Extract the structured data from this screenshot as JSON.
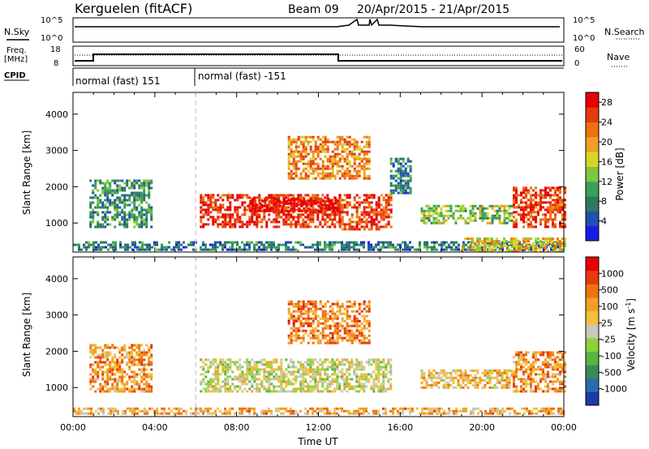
{
  "header": {
    "title": "Kerguelen (fitACF)",
    "beam": "Beam 09",
    "date_range": "20/Apr/2015 - 21/Apr/2015"
  },
  "strips": {
    "nsky_label": "N.Sky",
    "nsky_ticks": [
      "10^5",
      "10^0"
    ],
    "nsearch_label": "N.Search",
    "nsearch_ticks": [
      "10^5",
      "10^0"
    ],
    "freq_label": "Freq.",
    "freq_unit": "[MHz]",
    "freq_ticks": [
      "18",
      "8"
    ],
    "nave_label": "Nave",
    "nave_ticks": [
      "60",
      "0"
    ],
    "cpid_label": "CPID",
    "cpid_segments": [
      "normal (fast) 151",
      "normal (fast) -151"
    ]
  },
  "colors": {
    "power": [
      "#1a1ae6",
      "#2050b0",
      "#2f7a5a",
      "#3aa05a",
      "#7fc83c",
      "#d6d62a",
      "#f0a020",
      "#f07010",
      "#e63a0a",
      "#e60000"
    ],
    "velocity": [
      "#1a3caa",
      "#2a6ab0",
      "#3a8a5a",
      "#5ab440",
      "#8cd23c",
      "#c8c8c0",
      "#f0c040",
      "#f0a020",
      "#f07010",
      "#e63a0a",
      "#e60000"
    ]
  },
  "chart_data": [
    {
      "type": "heatmap",
      "panel": "power",
      "xlabel": "",
      "ylabel": "Slant Range [km]",
      "xlim": [
        0,
        24
      ],
      "ylim": [
        200,
        4600
      ],
      "yticks": [
        "1000",
        "2000",
        "3000",
        "4000"
      ],
      "colorbar": {
        "label": "Power [dB]",
        "ticks": [
          "4",
          "8",
          "12",
          "16",
          "20",
          "24",
          "28"
        ],
        "range": [
          0,
          30
        ]
      },
      "regions": [
        {
          "t0": 0.0,
          "t1": 24.0,
          "r0": 250,
          "r1": 500,
          "level": 0.25
        },
        {
          "t0": 0.8,
          "t1": 3.8,
          "r0": 900,
          "r1": 2200,
          "level": 0.3
        },
        {
          "t0": 6.2,
          "t1": 13.0,
          "r0": 900,
          "r1": 1800,
          "level": 0.88
        },
        {
          "t0": 8.5,
          "t1": 13.0,
          "r0": 1300,
          "r1": 1700,
          "level": 0.95
        },
        {
          "t0": 13.0,
          "t1": 15.5,
          "r0": 800,
          "r1": 1800,
          "level": 0.85
        },
        {
          "t0": 10.5,
          "t1": 14.5,
          "r0": 2200,
          "r1": 3400,
          "level": 0.72
        },
        {
          "t0": 15.5,
          "t1": 16.5,
          "r0": 1800,
          "r1": 2800,
          "level": 0.25
        },
        {
          "t0": 17.0,
          "t1": 21.5,
          "r0": 1000,
          "r1": 1500,
          "level": 0.45
        },
        {
          "t0": 21.5,
          "t1": 24.0,
          "r0": 900,
          "r1": 2000,
          "level": 0.85
        },
        {
          "t0": 19.0,
          "t1": 24.0,
          "r0": 250,
          "r1": 600,
          "level": 0.6
        }
      ]
    },
    {
      "type": "heatmap",
      "panel": "velocity",
      "xlabel": "Time UT",
      "ylabel": "Slant Range [km]",
      "xlim": [
        0,
        24
      ],
      "ylim": [
        200,
        4600
      ],
      "xticks": [
        "00:00",
        "04:00",
        "08:00",
        "12:00",
        "16:00",
        "20:00",
        "00:00"
      ],
      "yticks": [
        "1000",
        "2000",
        "3000",
        "4000"
      ],
      "colorbar": {
        "label": "Velocity [m s^-1]",
        "ticks": [
          "1000",
          "500",
          "100",
          "25",
          "-25",
          "-100",
          "-500",
          "-1000"
        ],
        "range": [
          1000,
          -1000
        ]
      },
      "regions": [
        {
          "t0": 0.0,
          "t1": 24.0,
          "r0": 250,
          "r1": 450,
          "level": 0.65
        },
        {
          "t0": 0.8,
          "t1": 3.8,
          "r0": 900,
          "r1": 2200,
          "level": 0.7
        },
        {
          "t0": 6.2,
          "t1": 15.5,
          "r0": 900,
          "r1": 1800,
          "level": 0.5
        },
        {
          "t0": 10.5,
          "t1": 14.5,
          "r0": 2200,
          "r1": 3400,
          "level": 0.75
        },
        {
          "t0": 17.0,
          "t1": 21.5,
          "r0": 1000,
          "r1": 1500,
          "level": 0.6
        },
        {
          "t0": 21.5,
          "t1": 24.0,
          "r0": 900,
          "r1": 2000,
          "level": 0.7
        }
      ]
    }
  ]
}
